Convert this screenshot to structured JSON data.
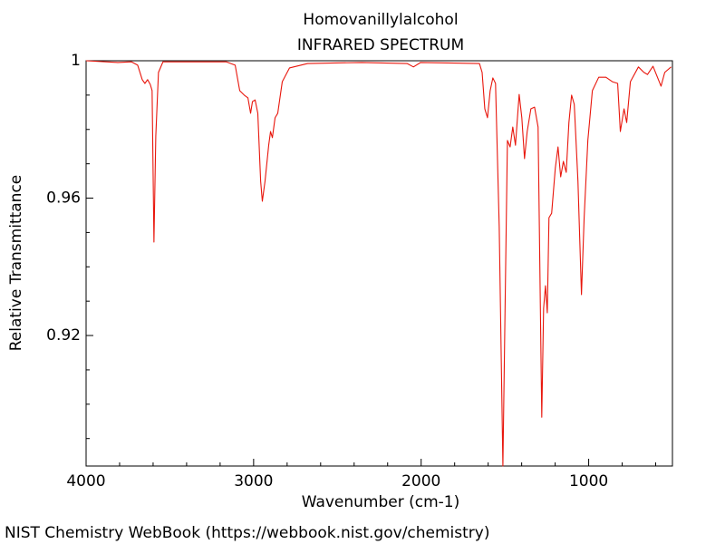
{
  "chart_data": {
    "type": "line",
    "title": "Homovanillylalcohol",
    "subtitle": "INFRARED SPECTRUM",
    "x_label": "Wavenumber (cm-1)",
    "y_label": "Relative Transmittance",
    "source": "NIST Chemistry WebBook (https://webbook.nist.gov/chemistry)",
    "color": "#e8160c",
    "xlim": [
      4000,
      500
    ],
    "ylim": [
      0.882,
      1
    ],
    "xticks": [
      4000,
      3000,
      2000,
      1000
    ],
    "yticks": [
      1,
      0.96,
      0.92
    ],
    "xminorticks": [
      3800,
      3600,
      3400,
      3200,
      2800,
      2600,
      2400,
      2200,
      1800,
      1600,
      1400,
      1200,
      800,
      600
    ],
    "yminorticks": [
      0.99,
      0.98,
      0.97,
      0.95,
      0.94,
      0.93,
      0.91,
      0.9,
      0.89
    ],
    "x": [
      4000,
      3811,
      3730,
      3692,
      3665,
      3649,
      3633,
      3617,
      3606,
      3595,
      3584,
      3568,
      3541,
      3164,
      3110,
      3083,
      3056,
      3034,
      3018,
      3007,
      2991,
      2975,
      2958,
      2948,
      2932,
      2910,
      2899,
      2888,
      2872,
      2856,
      2829,
      2786,
      2678,
      2354,
      2084,
      2046,
      2003,
      1652,
      1636,
      1620,
      1604,
      1588,
      1572,
      1556,
      1534,
      1512,
      1496,
      1485,
      1469,
      1453,
      1437,
      1415,
      1399,
      1383,
      1367,
      1345,
      1323,
      1302,
      1280,
      1269,
      1258,
      1247,
      1237,
      1221,
      1199,
      1183,
      1167,
      1151,
      1134,
      1118,
      1102,
      1086,
      1064,
      1043,
      1027,
      1005,
      978,
      940,
      897,
      859,
      827,
      811,
      789,
      773,
      751,
      703,
      670,
      649,
      616,
      568,
      546,
      508
    ],
    "values": [
      1,
      0.9995,
      0.9997,
      0.9987,
      0.9945,
      0.9934,
      0.9945,
      0.9931,
      0.9913,
      0.9472,
      0.978,
      0.9966,
      0.9997,
      0.9997,
      0.9987,
      0.9913,
      0.99,
      0.9892,
      0.9847,
      0.9881,
      0.9886,
      0.9847,
      0.9649,
      0.9591,
      0.9649,
      0.9754,
      0.9794,
      0.9776,
      0.9834,
      0.9847,
      0.9939,
      0.9979,
      0.9992,
      0.9995,
      0.9992,
      0.9982,
      0.9995,
      0.9992,
      0.9966,
      0.986,
      0.9834,
      0.9913,
      0.995,
      0.9934,
      0.9517,
      0.882,
      0.9385,
      0.9768,
      0.9749,
      0.9807,
      0.9754,
      0.9902,
      0.9834,
      0.9715,
      0.9794,
      0.986,
      0.9865,
      0.9807,
      0.8962,
      0.9279,
      0.9345,
      0.9266,
      0.9543,
      0.9556,
      0.9688,
      0.9749,
      0.9662,
      0.9707,
      0.9675,
      0.982,
      0.99,
      0.9873,
      0.9649,
      0.9319,
      0.9543,
      0.9768,
      0.9913,
      0.9952,
      0.9952,
      0.9939,
      0.9934,
      0.9794,
      0.986,
      0.982,
      0.9939,
      0.9982,
      0.9966,
      0.996,
      0.9984,
      0.9926,
      0.9966,
      0.9982
    ]
  }
}
